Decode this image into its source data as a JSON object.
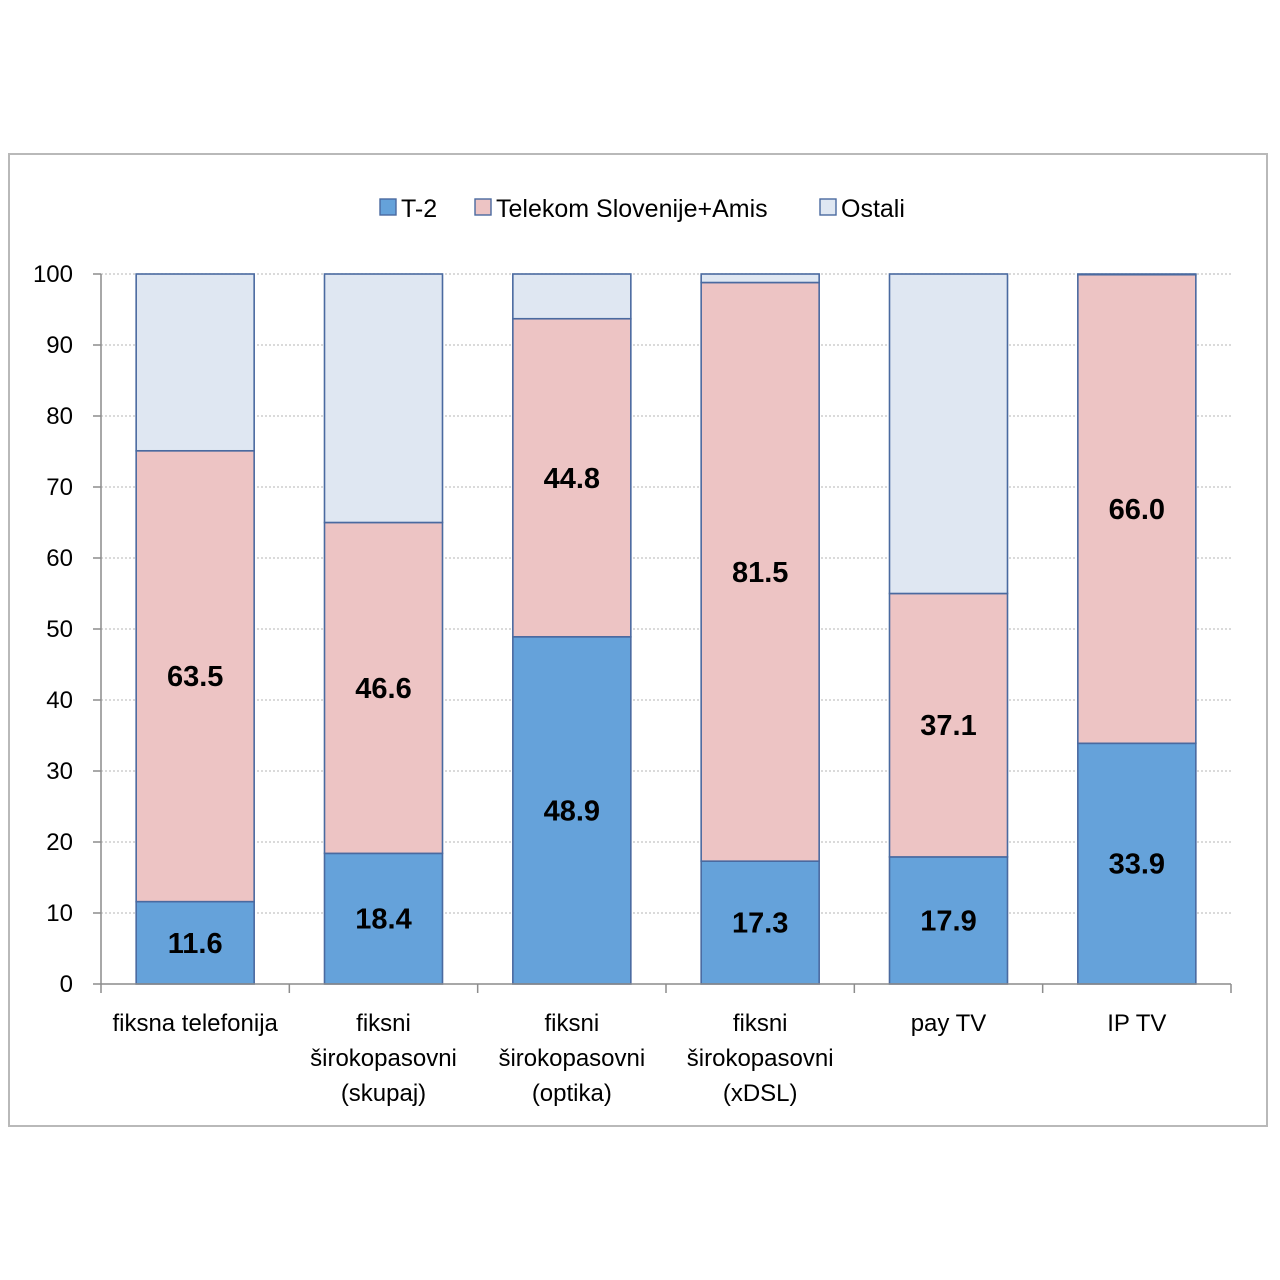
{
  "chart_data": {
    "type": "bar",
    "stacked": true,
    "categories": [
      [
        "fiksna telefonija"
      ],
      [
        "fiksni",
        "širokopasovni",
        "(skupaj)"
      ],
      [
        "fiksni",
        "širokopasovni",
        "(optika)"
      ],
      [
        "fiksni",
        "širokopasovni",
        "(xDSL)"
      ],
      [
        "pay TV"
      ],
      [
        "IP TV"
      ]
    ],
    "series": [
      {
        "name": "T-2",
        "values": [
          11.6,
          18.4,
          48.9,
          17.3,
          17.9,
          33.9
        ],
        "color": "#65a2da",
        "labels": [
          "11.6",
          "18.4",
          "48.9",
          "17.3",
          "17.9",
          "33.9"
        ]
      },
      {
        "name": "Telekom Slovenije+Amis",
        "values": [
          63.5,
          46.6,
          44.8,
          81.5,
          37.1,
          66.0
        ],
        "color": "#edc4c4",
        "labels": [
          "63.5",
          "46.6",
          "44.8",
          "81.5",
          "37.1",
          "66.0"
        ]
      },
      {
        "name": "Ostali",
        "values": [
          24.9,
          35.0,
          6.3,
          1.2,
          45.0,
          0.1
        ],
        "color": "#dfe7f2",
        "labels": [
          "",
          "",
          "",
          "",
          "",
          ""
        ]
      }
    ],
    "ylim": [
      0,
      100
    ],
    "yticks": [
      "0",
      "10",
      "20",
      "30",
      "40",
      "50",
      "60",
      "70",
      "80",
      "90",
      "100"
    ],
    "grid": true,
    "legend": "top",
    "bar_border_color": "#4a6aa0"
  }
}
